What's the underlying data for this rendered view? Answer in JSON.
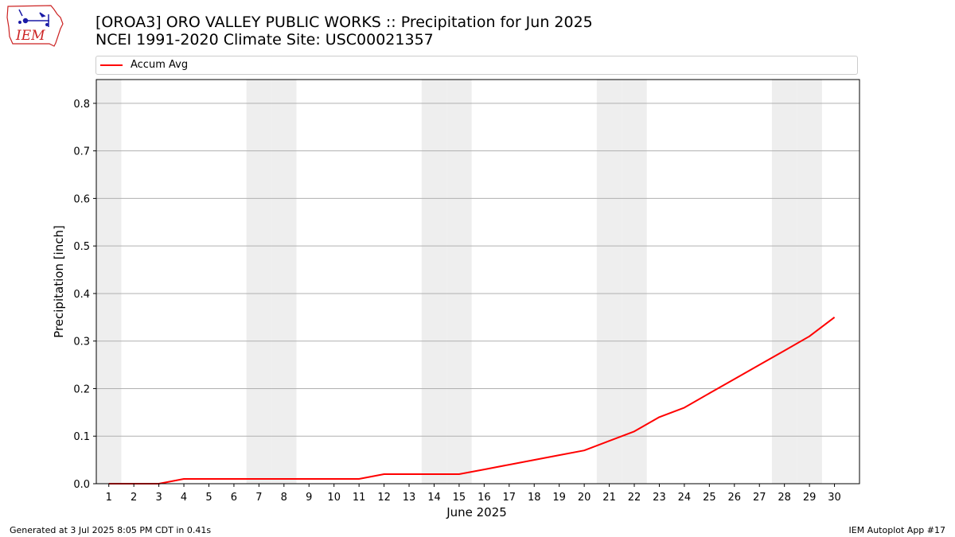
{
  "header": {
    "title_line1": "[OROA3] ORO VALLEY PUBLIC WORKS :: Precipitation for Jun 2025",
    "title_line2": "NCEI 1991-2020 Climate Site: USC00021357",
    "logo_text": "IEM",
    "logo_icon": "iowa-state-outline-weather-icon"
  },
  "footer": {
    "generated": "Generated at 3 Jul 2025 8:05 PM CDT in 0.41s",
    "app": "IEM Autoplot App #17"
  },
  "colors": {
    "line": "#ff0000",
    "weekend_shade": "#eeeeee",
    "grid": "#b0b0b0",
    "logo_red": "#cc2222",
    "logo_blue": "#1a1aa6"
  },
  "chart_data": {
    "type": "line",
    "title": "[OROA3] ORO VALLEY PUBLIC WORKS :: Precipitation for Jun 2025",
    "subtitle": "NCEI 1991-2020 Climate Site: USC00021357",
    "xlabel": "June 2025",
    "ylabel": "Precipitation [inch]",
    "xlim": [
      0.5,
      31
    ],
    "ylim": [
      0,
      0.85
    ],
    "x_ticks": [
      1,
      2,
      3,
      4,
      5,
      6,
      7,
      8,
      9,
      10,
      11,
      12,
      13,
      14,
      15,
      16,
      17,
      18,
      19,
      20,
      21,
      22,
      23,
      24,
      25,
      26,
      27,
      28,
      29,
      30
    ],
    "y_ticks": [
      0.0,
      0.1,
      0.2,
      0.3,
      0.4,
      0.5,
      0.6,
      0.7,
      0.8
    ],
    "y_tick_labels": [
      "0.0",
      "0.1",
      "0.2",
      "0.3",
      "0.4",
      "0.5",
      "0.6",
      "0.7",
      "0.8"
    ],
    "grid": "horizontal",
    "legend": {
      "placement": "top",
      "entries": [
        "Accum Avg"
      ]
    },
    "weekend_days": [
      1,
      7,
      8,
      14,
      15,
      21,
      22,
      28,
      29
    ],
    "series": [
      {
        "name": "Accum Avg",
        "x": [
          1,
          2,
          3,
          4,
          5,
          6,
          7,
          8,
          9,
          10,
          11,
          12,
          13,
          14,
          15,
          16,
          17,
          18,
          19,
          20,
          21,
          22,
          23,
          24,
          25,
          26,
          27,
          28,
          29,
          30
        ],
        "values": [
          0.0,
          0.0,
          0.0,
          0.01,
          0.01,
          0.01,
          0.01,
          0.01,
          0.01,
          0.01,
          0.01,
          0.02,
          0.02,
          0.02,
          0.02,
          0.03,
          0.04,
          0.05,
          0.06,
          0.07,
          0.09,
          0.11,
          0.14,
          0.16,
          0.19,
          0.22,
          0.25,
          0.28,
          0.31,
          0.35
        ]
      }
    ]
  }
}
